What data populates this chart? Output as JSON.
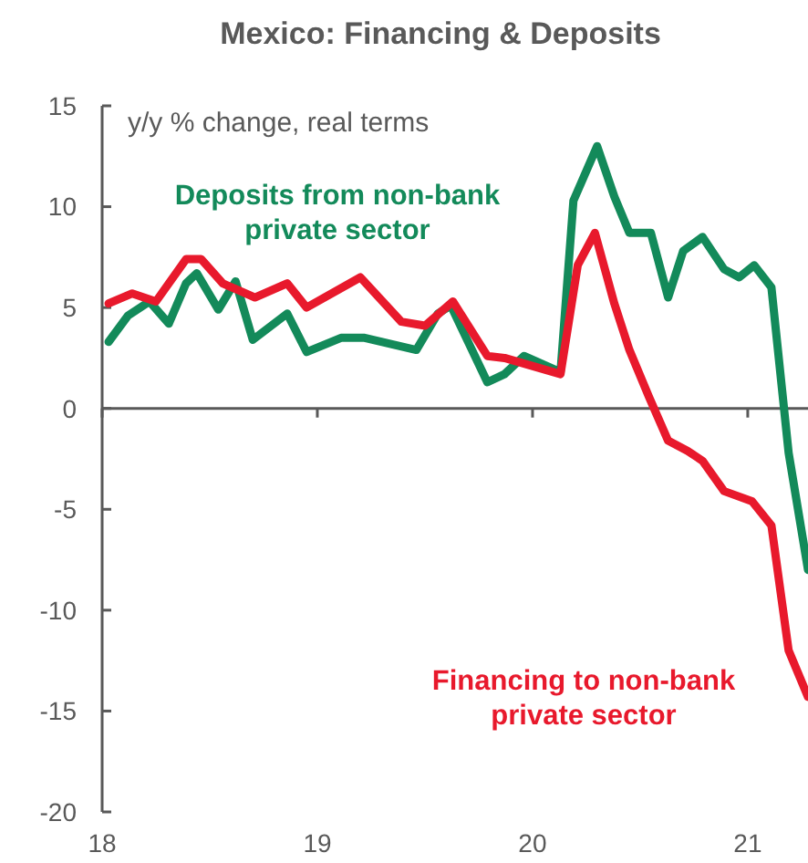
{
  "chart_data": {
    "type": "line",
    "title": "Mexico: Financing & Deposits",
    "ylabel": "y/y % change, real terms",
    "xlim": [
      2018,
      2021.28
    ],
    "xticks": [
      {
        "value": 2018,
        "label": "18"
      },
      {
        "value": 2019,
        "label": "19"
      },
      {
        "value": 2020,
        "label": "20"
      },
      {
        "value": 2021,
        "label": "21"
      }
    ],
    "ylim": [
      -20,
      15
    ],
    "yticks": [
      -20,
      -15,
      -10,
      -5,
      0,
      5,
      10,
      15
    ],
    "line_style": "solid",
    "series": [
      {
        "name": "Deposits from non-bank private sector",
        "color": "#138a5a",
        "x": [
          2018.03,
          2018.12,
          2018.22,
          2018.31,
          2018.39,
          2018.44,
          2018.54,
          2018.62,
          2018.7,
          2018.86,
          2018.95,
          2019.11,
          2019.22,
          2019.46,
          2019.56,
          2019.62,
          2019.79,
          2019.87,
          2019.96,
          2020.13,
          2020.19,
          2020.3,
          2020.38,
          2020.45,
          2020.55,
          2020.63,
          2020.7,
          2020.79,
          2020.89,
          2020.96,
          2021.03,
          2021.11,
          2021.19,
          2021.28
        ],
        "values": [
          3.3,
          4.6,
          5.3,
          4.2,
          6.2,
          6.7,
          4.9,
          6.3,
          3.4,
          4.7,
          2.8,
          3.5,
          3.5,
          2.9,
          4.7,
          5.1,
          1.3,
          1.7,
          2.6,
          1.8,
          10.3,
          13.0,
          10.5,
          8.7,
          8.7,
          5.5,
          7.8,
          8.5,
          6.9,
          6.5,
          7.1,
          6.0,
          -2.2,
          -8.0
        ]
      },
      {
        "name": "Financing to non-bank private sector",
        "color": "#e8192c",
        "x": [
          2018.03,
          2018.14,
          2018.25,
          2018.39,
          2018.46,
          2018.56,
          2018.71,
          2018.86,
          2018.95,
          2019.2,
          2019.39,
          2019.5,
          2019.63,
          2019.79,
          2019.87,
          2020.13,
          2020.21,
          2020.29,
          2020.38,
          2020.45,
          2020.54,
          2020.63,
          2020.72,
          2020.79,
          2020.89,
          2021.02,
          2021.11,
          2021.19,
          2021.28
        ],
        "values": [
          5.2,
          5.7,
          5.3,
          7.4,
          7.4,
          6.2,
          5.5,
          6.2,
          5.0,
          6.5,
          4.3,
          4.1,
          5.3,
          2.6,
          2.5,
          1.7,
          7.1,
          8.7,
          5.2,
          2.9,
          0.6,
          -1.6,
          -2.1,
          -2.6,
          -4.1,
          -4.6,
          -5.8,
          -12.0,
          -14.3
        ]
      }
    ]
  }
}
